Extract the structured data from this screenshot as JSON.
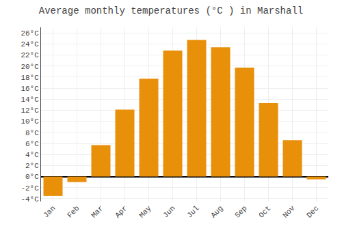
{
  "chart_data": {
    "type": "bar",
    "title": "Average monthly temperatures (°C ) in Marshall",
    "categories": [
      "Jan",
      "Feb",
      "Mar",
      "Apr",
      "May",
      "Jun",
      "Jul",
      "Aug",
      "Sep",
      "Oct",
      "Nov",
      "Dec"
    ],
    "values": [
      -3.5,
      -1.0,
      5.7,
      12.1,
      17.7,
      22.8,
      24.7,
      23.4,
      19.7,
      13.3,
      6.6,
      -0.5
    ],
    "color": "#E8900A",
    "ylim": [
      -4.5,
      27
    ],
    "yticks": [
      {
        "value": -4,
        "label": "-4°C"
      },
      {
        "value": -2,
        "label": "-2°C"
      },
      {
        "value": 0,
        "label": "0°C"
      },
      {
        "value": 2,
        "label": "2°C"
      },
      {
        "value": 4,
        "label": "4°C"
      },
      {
        "value": 6,
        "label": "6°C"
      },
      {
        "value": 8,
        "label": "8°C"
      },
      {
        "value": 10,
        "label": "10°C"
      },
      {
        "value": 12,
        "label": "12°C"
      },
      {
        "value": 14,
        "label": "14°C"
      },
      {
        "value": 16,
        "label": "16°C"
      },
      {
        "value": 18,
        "label": "18°C"
      },
      {
        "value": 20,
        "label": "20°C"
      },
      {
        "value": 22,
        "label": "22°C"
      },
      {
        "value": 24,
        "label": "24°C"
      },
      {
        "value": 26,
        "label": "26°C"
      }
    ],
    "grid": true
  }
}
